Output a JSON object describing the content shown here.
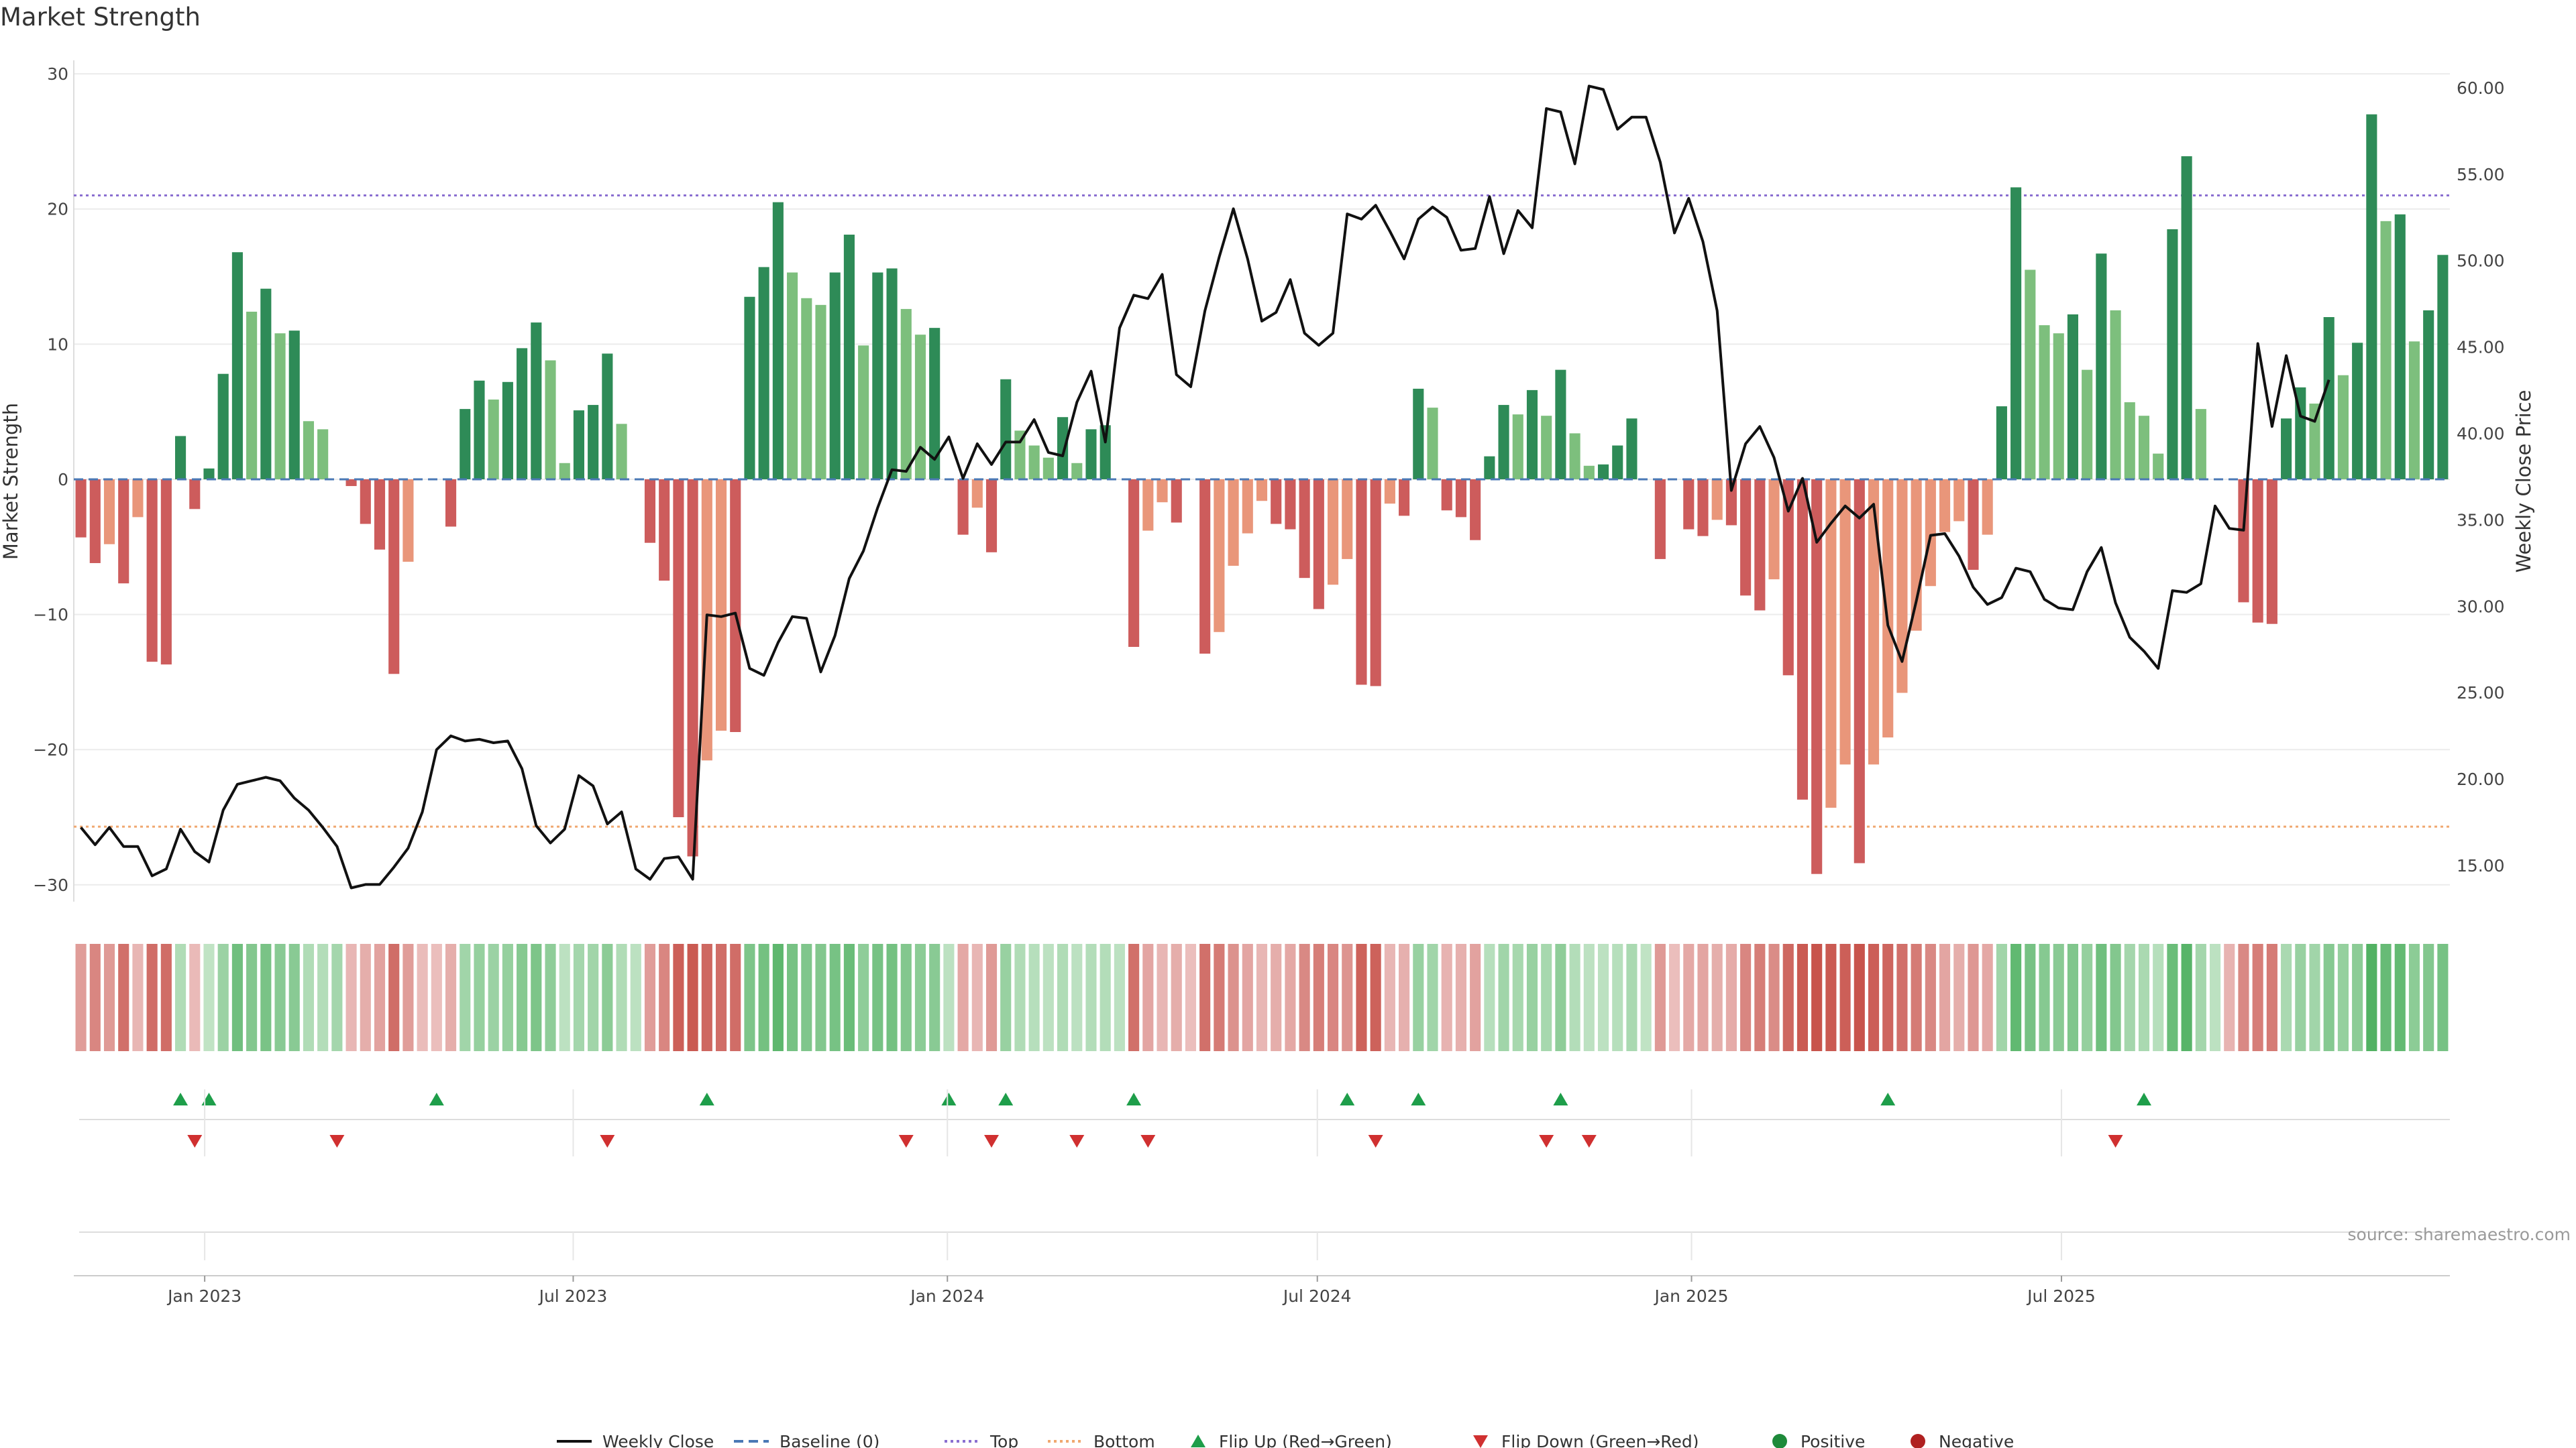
{
  "chart_data": {
    "type": "bar",
    "title": "Market Strength",
    "ylabel_left": "Market Strength",
    "ylabel_right": "Weekly Close Price",
    "source": "source: sharemaestro.com",
    "left_ylim": [
      -31,
      30.5
    ],
    "right_ylim": [
      13.1,
      61.2
    ],
    "left_ticks": [
      30,
      20,
      10,
      0,
      -10,
      -20,
      -30
    ],
    "left_tick_labels": [
      "30",
      "20",
      "10",
      "0",
      "−10",
      "−20",
      "−30"
    ],
    "right_ticks": [
      60,
      55,
      50,
      45,
      40,
      35,
      30,
      25,
      20,
      15
    ],
    "right_tick_labels": [
      "60.00",
      "55.00",
      "50.00",
      "45.00",
      "40.00",
      "35.00",
      "30.00",
      "25.00",
      "20.00",
      "15.00"
    ],
    "top_line": 21,
    "bottom_line": -25.7,
    "baseline": 0,
    "grid": true,
    "x_tick_labels": [
      {
        "label": "Jan 2023",
        "index": 8.7
      },
      {
        "label": "Jul 2023",
        "index": 34.6
      },
      {
        "label": "Jan 2024",
        "index": 60.9
      },
      {
        "label": "Jul 2024",
        "index": 86.9
      },
      {
        "label": "Jan 2025",
        "index": 113.2
      },
      {
        "label": "Jul 2025",
        "index": 139.2
      }
    ],
    "market_strength": [
      -4.3,
      -6.2,
      -4.8,
      -7.7,
      -2.8,
      -13.5,
      -13.7,
      3.2,
      -2.2,
      0.8,
      7.8,
      16.8,
      12.4,
      14.1,
      10.8,
      11.0,
      4.3,
      3.7,
      0,
      -0.5,
      -3.3,
      -5.2,
      -14.4,
      -6.1,
      0,
      0,
      -3.5,
      5.2,
      7.3,
      5.9,
      7.2,
      9.7,
      11.6,
      8.8,
      1.2,
      5.1,
      5.5,
      9.3,
      4.1,
      0,
      -4.7,
      -7.5,
      -25.0,
      -27.9,
      -20.8,
      -18.6,
      -18.7,
      13.5,
      15.7,
      20.5,
      15.3,
      13.4,
      12.9,
      15.3,
      18.1,
      9.9,
      15.3,
      15.6,
      12.6,
      10.7,
      11.2,
      0,
      -4.1,
      -2.1,
      -5.4,
      7.4,
      3.6,
      2.5,
      1.6,
      4.6,
      1.2,
      3.7,
      4.0,
      0,
      -12.4,
      -3.8,
      -1.7,
      -3.2,
      0,
      -12.9,
      -11.3,
      -6.4,
      -4.0,
      -1.6,
      -3.3,
      -3.7,
      -7.3,
      -9.6,
      -7.8,
      -5.9,
      -15.2,
      -15.3,
      -1.8,
      -2.7,
      6.7,
      5.3,
      -2.3,
      -2.8,
      -4.5,
      1.7,
      5.5,
      4.8,
      6.6,
      4.7,
      8.1,
      3.4,
      1.0,
      1.1,
      2.5,
      4.5,
      0,
      -5.9,
      0,
      -3.7,
      -4.2,
      -3.0,
      -3.4,
      -8.6,
      -9.7,
      -7.4,
      -14.5,
      -23.7,
      -29.2,
      -24.3,
      -21.1,
      -28.4,
      -21.1,
      -19.1,
      -15.8,
      -11.2,
      -7.9,
      -3.9,
      -3.1,
      -6.7,
      -4.1,
      5.4,
      21.6,
      15.5,
      11.4,
      10.8,
      12.2,
      8.1,
      16.7,
      12.5,
      5.7,
      4.7,
      1.9,
      18.5,
      23.9,
      5.2,
      0,
      0,
      -9.1,
      -10.6,
      -10.7,
      4.5,
      6.8,
      5.6,
      12.0,
      7.7,
      10.1,
      27.0,
      19.1,
      19.6,
      10.2,
      12.5,
      16.6
    ],
    "weekly_close": [
      17.2,
      16.2,
      17.2,
      16.1,
      16.1,
      14.4,
      14.8,
      17.1,
      15.8,
      15.2,
      18.2,
      19.7,
      19.9,
      20.1,
      19.9,
      18.9,
      18.2,
      17.2,
      16.1,
      13.7,
      13.9,
      13.9,
      14.9,
      16.0,
      18.1,
      21.7,
      22.5,
      22.2,
      22.3,
      22.1,
      22.2,
      20.6,
      17.3,
      16.3,
      17.1,
      20.2,
      19.6,
      17.4,
      18.1,
      14.8,
      14.2,
      15.4,
      15.5,
      14.2,
      29.5,
      29.4,
      29.6,
      26.4,
      26.0,
      27.9,
      29.4,
      29.3,
      26.2,
      28.3,
      31.6,
      33.2,
      35.7,
      37.9,
      37.8,
      39.2,
      38.5,
      39.8,
      37.4,
      39.4,
      38.2,
      39.5,
      39.5,
      40.8,
      38.9,
      38.7,
      41.8,
      43.6,
      39.5,
      46.1,
      48.0,
      47.8,
      49.2,
      43.4,
      42.7,
      47.1,
      50.2,
      53.0,
      50.1,
      46.5,
      47.0,
      48.9,
      45.8,
      45.1,
      45.8,
      52.7,
      52.4,
      53.2,
      51.7,
      50.1,
      52.4,
      53.1,
      52.5,
      50.6,
      50.7,
      53.7,
      50.4,
      52.9,
      51.9,
      58.8,
      58.6,
      55.6,
      60.1,
      59.9,
      57.6,
      58.3,
      58.3,
      55.7,
      51.6,
      53.6,
      51.1,
      47.1,
      36.7,
      39.4,
      40.4,
      38.6,
      35.5,
      37.4,
      33.7,
      34.8,
      35.8,
      35.1,
      35.9,
      28.9,
      26.8,
      30.3,
      34.1,
      34.2,
      32.9,
      31.1,
      30.1,
      30.5,
      32.2,
      32.0,
      30.4,
      29.9,
      29.8,
      32.0,
      33.4,
      30.2,
      28.2,
      27.4,
      26.4,
      30.9,
      30.8,
      31.3,
      35.8,
      34.5,
      34.4,
      45.2,
      40.4,
      44.5,
      41.0,
      40.7,
      43.1
    ],
    "heatmap_intensity": [
      0.48,
      0.64,
      0.5,
      0.8,
      0.3,
      0.82,
      0.82,
      0.34,
      0.27,
      0.24,
      0.48,
      0.76,
      0.64,
      0.7,
      0.6,
      0.6,
      0.34,
      0.32,
      0.42,
      0.3,
      0.36,
      0.44,
      0.82,
      0.48,
      0.26,
      0.24,
      0.36,
      0.44,
      0.52,
      0.48,
      0.52,
      0.62,
      0.68,
      0.56,
      0.26,
      0.42,
      0.44,
      0.58,
      0.34,
      0.26,
      0.48,
      0.64,
      0.92,
      0.96,
      0.86,
      0.82,
      0.82,
      0.68,
      0.74,
      0.88,
      0.72,
      0.66,
      0.64,
      0.72,
      0.8,
      0.56,
      0.72,
      0.74,
      0.64,
      0.58,
      0.6,
      0.26,
      0.4,
      0.3,
      0.5,
      0.5,
      0.34,
      0.3,
      0.26,
      0.34,
      0.26,
      0.32,
      0.32,
      0.26,
      0.8,
      0.42,
      0.3,
      0.36,
      0.24,
      0.8,
      0.72,
      0.56,
      0.42,
      0.3,
      0.36,
      0.4,
      0.62,
      0.7,
      0.64,
      0.54,
      0.9,
      0.9,
      0.3,
      0.34,
      0.5,
      0.44,
      0.32,
      0.34,
      0.44,
      0.3,
      0.44,
      0.4,
      0.5,
      0.4,
      0.56,
      0.32,
      0.26,
      0.26,
      0.3,
      0.38,
      0.24,
      0.5,
      0.24,
      0.4,
      0.42,
      0.36,
      0.38,
      0.64,
      0.7,
      0.6,
      0.86,
      0.96,
      1.0,
      0.96,
      0.92,
      1.0,
      0.92,
      0.88,
      0.8,
      0.72,
      0.62,
      0.42,
      0.36,
      0.52,
      0.4,
      0.44,
      0.86,
      0.72,
      0.62,
      0.6,
      0.66,
      0.52,
      0.76,
      0.64,
      0.42,
      0.38,
      0.3,
      0.8,
      0.92,
      0.42,
      0.26,
      0.32,
      0.62,
      0.7,
      0.72,
      0.38,
      0.5,
      0.44,
      0.62,
      0.52,
      0.58,
      0.96,
      0.82,
      0.84,
      0.58,
      0.64,
      0.72
    ],
    "flip_up_indices": [
      7,
      9,
      25,
      44,
      61,
      65,
      74,
      89,
      94,
      104,
      127,
      145
    ],
    "flip_down_indices": [
      8,
      18,
      37,
      58,
      64,
      70,
      75,
      91,
      103,
      106,
      143
    ],
    "legend": [
      {
        "label": "Weekly Close",
        "kind": "line",
        "color": "#111111",
        "dash": ""
      },
      {
        "label": "Baseline (0)",
        "kind": "line",
        "color": "#4a78b5",
        "dash": "14,8"
      },
      {
        "label": "Top",
        "kind": "line",
        "color": "#8a6fd0",
        "dash": "4,5"
      },
      {
        "label": "Bottom",
        "kind": "line",
        "color": "#f0a870",
        "dash": "4,5"
      },
      {
        "label": "Flip Up (Red→Green)",
        "kind": "tri-up",
        "color": "#1e9e4a"
      },
      {
        "label": "Flip Down (Green→Red)",
        "kind": "tri-down",
        "color": "#d03030"
      },
      {
        "label": "Positive",
        "kind": "dot",
        "color": "#1e8a3a"
      },
      {
        "label": "Negative",
        "kind": "dot",
        "color": "#b02020"
      }
    ],
    "colors": {
      "pos_strong": "#2e8b57",
      "pos_light": "#7dbf7d",
      "neg_strong": "#cd5c5c",
      "neg_light": "#e9967a",
      "top_line": "#8a6fd0",
      "bottom_line": "#f0a870",
      "baseline": "#4a78b5",
      "price_line": "#111111"
    }
  }
}
